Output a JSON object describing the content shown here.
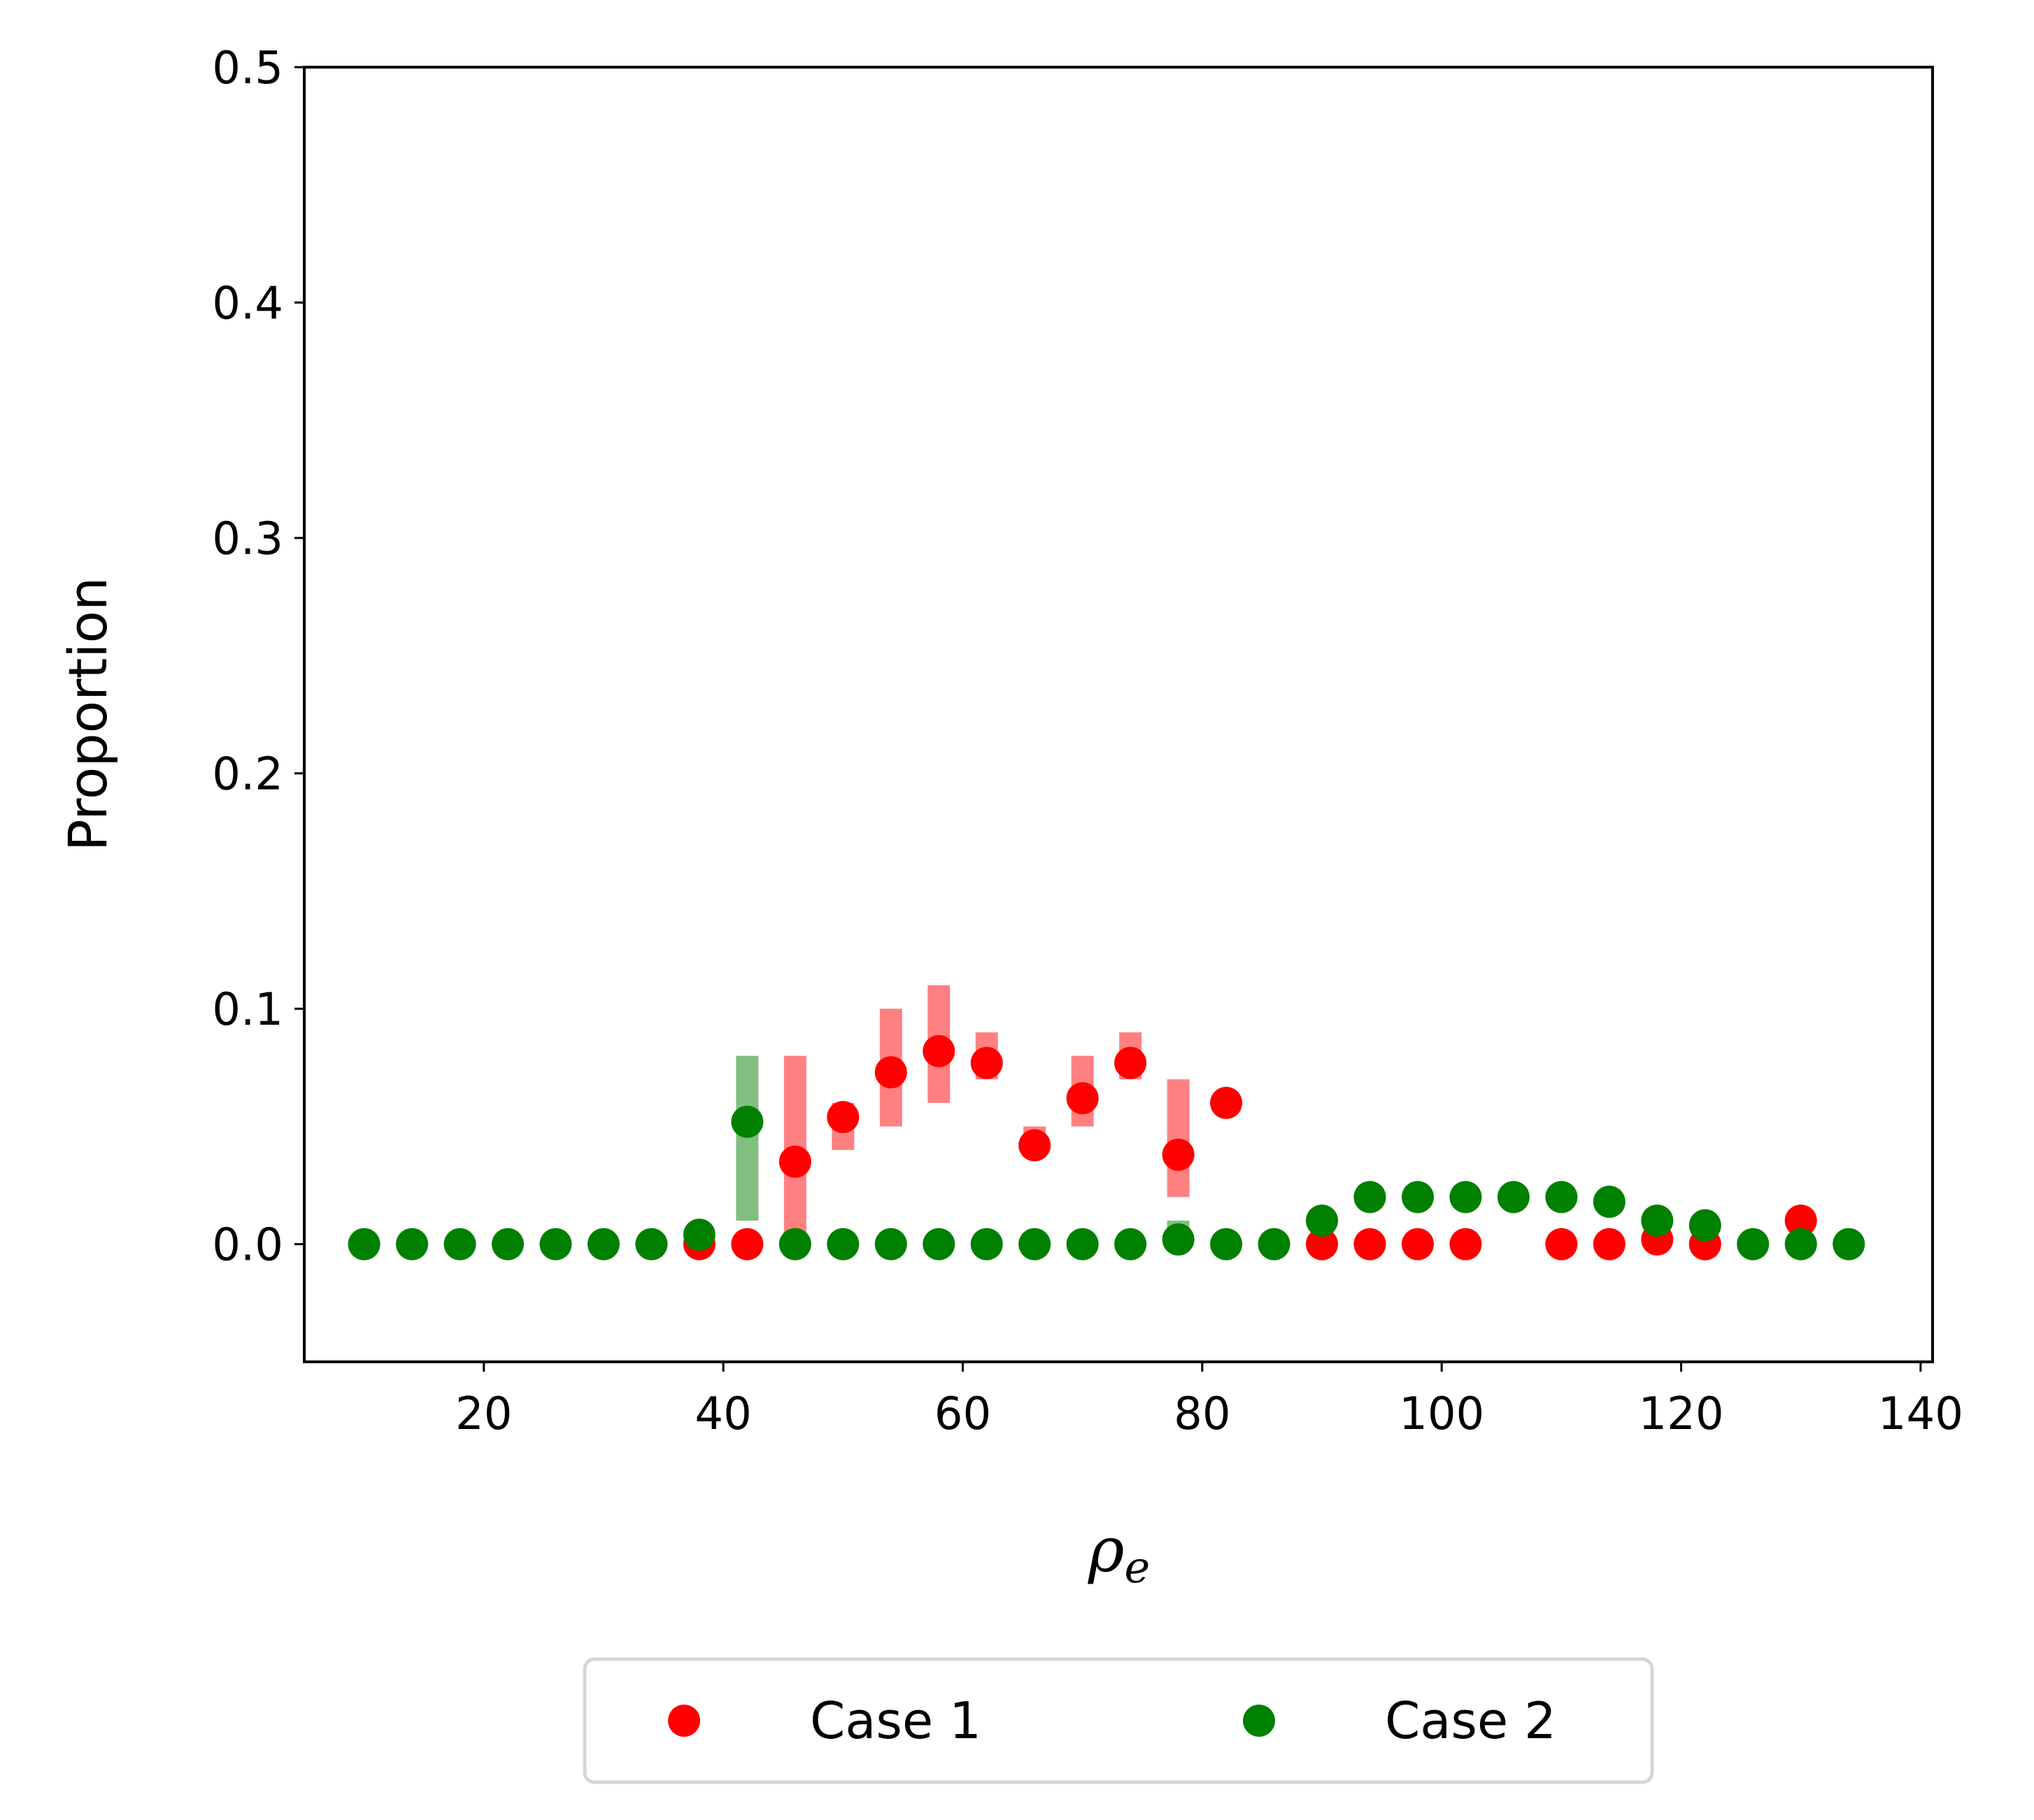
{
  "chart_data": {
    "type": "scatter",
    "xlabel": "ρ",
    "xlabel_subscript": "e",
    "ylabel": "Proportion",
    "xlim": [
      5,
      141
    ],
    "ylim": [
      -0.05,
      0.5
    ],
    "xticks": [
      20,
      40,
      60,
      80,
      100,
      120,
      140
    ],
    "yticks": [
      0.0,
      0.1,
      0.2,
      0.3,
      0.4,
      0.5
    ],
    "xtick_labels": [
      "20",
      "40",
      "60",
      "80",
      "100",
      "120",
      "140"
    ],
    "ytick_labels": [
      "0.0",
      "0.1",
      "0.2",
      "0.3",
      "0.4",
      "0.5"
    ],
    "grid": false,
    "legend_position": "bottom-center",
    "series": [
      {
        "name": "Case 1",
        "color": "#ff0000",
        "error_color": "#ff8080",
        "points": [
          {
            "x": 38,
            "y": 0.0
          },
          {
            "x": 42,
            "y": 0.0
          },
          {
            "x": 46,
            "y": 0.035,
            "lo": 0.003,
            "hi": 0.08
          },
          {
            "x": 50,
            "y": 0.054,
            "lo": 0.04,
            "hi": 0.06
          },
          {
            "x": 54,
            "y": 0.073,
            "lo": 0.05,
            "hi": 0.1
          },
          {
            "x": 58,
            "y": 0.082,
            "lo": 0.06,
            "hi": 0.11
          },
          {
            "x": 62,
            "y": 0.077,
            "lo": 0.07,
            "hi": 0.09
          },
          {
            "x": 66,
            "y": 0.042,
            "lo": 0.04,
            "hi": 0.05
          },
          {
            "x": 70,
            "y": 0.062,
            "lo": 0.05,
            "hi": 0.08
          },
          {
            "x": 74,
            "y": 0.077,
            "lo": 0.07,
            "hi": 0.09
          },
          {
            "x": 78,
            "y": 0.038,
            "lo": 0.02,
            "hi": 0.07
          },
          {
            "x": 82,
            "y": 0.06
          },
          {
            "x": 90,
            "y": 0.0
          },
          {
            "x": 94,
            "y": 0.0
          },
          {
            "x": 98,
            "y": 0.0
          },
          {
            "x": 102,
            "y": 0.0
          },
          {
            "x": 110,
            "y": 0.0
          },
          {
            "x": 114,
            "y": 0.0
          },
          {
            "x": 118,
            "y": 0.002,
            "lo": 0.0,
            "hi": 0.008
          },
          {
            "x": 122,
            "y": 0.0
          },
          {
            "x": 130,
            "y": 0.01
          }
        ]
      },
      {
        "name": "Case 2",
        "color": "#008000",
        "error_color": "#80bf80",
        "points": [
          {
            "x": 10,
            "y": 0.0
          },
          {
            "x": 14,
            "y": 0.0
          },
          {
            "x": 18,
            "y": 0.0
          },
          {
            "x": 22,
            "y": 0.0
          },
          {
            "x": 26,
            "y": 0.0
          },
          {
            "x": 30,
            "y": 0.0
          },
          {
            "x": 34,
            "y": 0.0
          },
          {
            "x": 38,
            "y": 0.004
          },
          {
            "x": 42,
            "y": 0.052,
            "lo": 0.01,
            "hi": 0.08
          },
          {
            "x": 46,
            "y": 0.0
          },
          {
            "x": 50,
            "y": 0.0
          },
          {
            "x": 54,
            "y": 0.0
          },
          {
            "x": 58,
            "y": 0.0
          },
          {
            "x": 62,
            "y": 0.0
          },
          {
            "x": 66,
            "y": 0.0
          },
          {
            "x": 70,
            "y": 0.0
          },
          {
            "x": 74,
            "y": 0.0
          },
          {
            "x": 78,
            "y": 0.002,
            "lo": 0.0,
            "hi": 0.01
          },
          {
            "x": 82,
            "y": 0.0
          },
          {
            "x": 86,
            "y": 0.0
          },
          {
            "x": 90,
            "y": 0.01
          },
          {
            "x": 94,
            "y": 0.02
          },
          {
            "x": 98,
            "y": 0.02
          },
          {
            "x": 102,
            "y": 0.02
          },
          {
            "x": 106,
            "y": 0.02
          },
          {
            "x": 110,
            "y": 0.02
          },
          {
            "x": 114,
            "y": 0.018
          },
          {
            "x": 118,
            "y": 0.01
          },
          {
            "x": 122,
            "y": 0.008
          },
          {
            "x": 126,
            "y": 0.0
          },
          {
            "x": 130,
            "y": 0.0
          },
          {
            "x": 134,
            "y": 0.0
          }
        ]
      }
    ]
  }
}
